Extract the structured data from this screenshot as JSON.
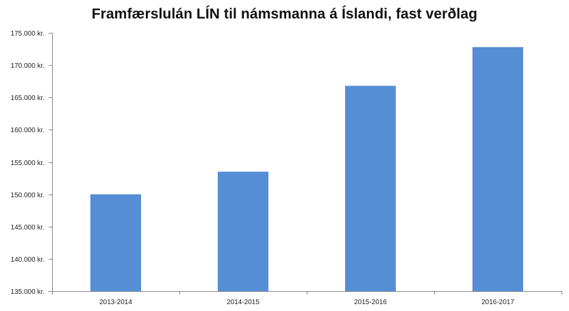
{
  "chart_data": {
    "type": "bar",
    "title": "Framfærslulán LÍN til námsmanna á Íslandi, fast verðlag",
    "xlabel": "",
    "ylabel": "",
    "categories": [
      "2013-2014",
      "2014-2015",
      "2015-2016",
      "2016-2017"
    ],
    "values": [
      150000,
      153500,
      166800,
      172800
    ],
    "ylim": [
      135000,
      175000
    ],
    "yticks": [
      135000,
      140000,
      145000,
      150000,
      155000,
      160000,
      165000,
      170000,
      175000
    ],
    "ytick_labels": [
      "135.000 kr.",
      "140.000 kr.",
      "145.000 kr.",
      "150.000 kr.",
      "155.000 kr.",
      "160.000 kr.",
      "165.000 kr.",
      "170.000 kr.",
      "175.000 kr."
    ],
    "grid": false,
    "legend": "none",
    "bar_color": "#558ED5",
    "axis_color": "#868686"
  }
}
